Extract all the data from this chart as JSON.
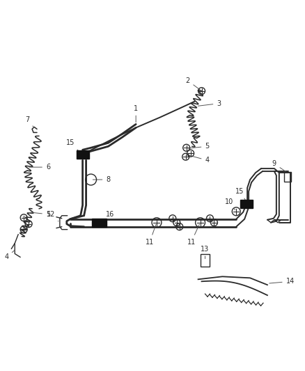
{
  "bg_color": "#ffffff",
  "line_color": "#2a2a2a",
  "figsize": [
    4.38,
    5.33
  ],
  "dpi": 100,
  "lw_main": 1.4,
  "lw_thin": 1.0,
  "lw_thick": 2.0
}
